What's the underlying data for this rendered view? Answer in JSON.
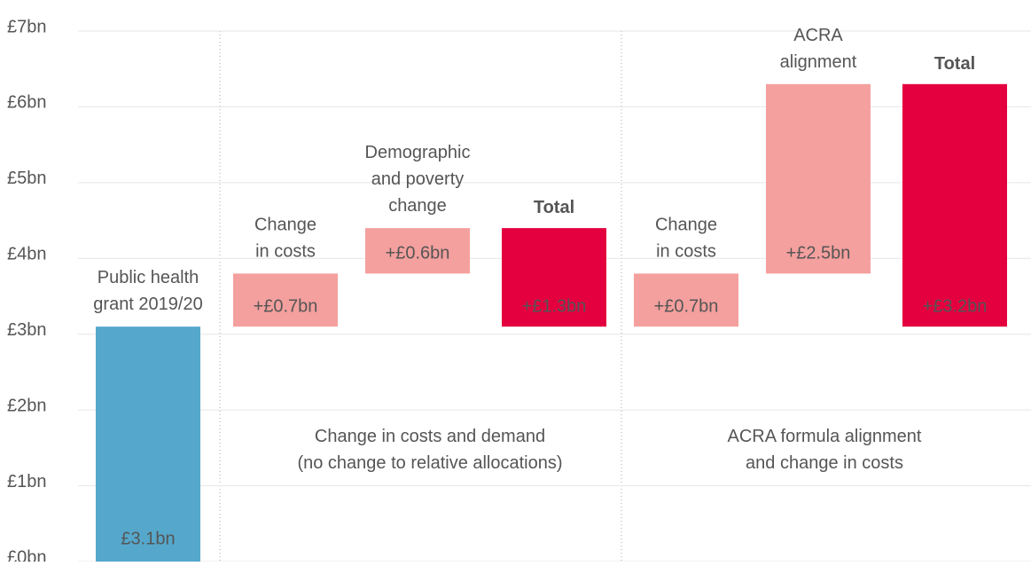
{
  "chart_data": {
    "type": "waterfall",
    "ylim": [
      0,
      7
    ],
    "yticks": [
      {
        "value": 0,
        "label": "£0bn"
      },
      {
        "value": 1,
        "label": "£1bn"
      },
      {
        "value": 2,
        "label": "£2bn"
      },
      {
        "value": 3,
        "label": "£3bn"
      },
      {
        "value": 4,
        "label": "£4bn"
      },
      {
        "value": 5,
        "label": "£5bn"
      },
      {
        "value": 6,
        "label": "£6bn"
      },
      {
        "value": 7,
        "label": "£7bn"
      }
    ],
    "grid": true,
    "start": {
      "label": "Public health\ngrant 2019/20",
      "value": 3.1,
      "value_label": "£3.1bn",
      "color": "#55a8cc"
    },
    "step_color": "#f4a09e",
    "total_color": "#e4003f",
    "groups": [
      {
        "caption": "Change in costs and demand\n(no change to relative allocations)",
        "steps": [
          {
            "label": "Change\nin costs",
            "value": 0.7,
            "value_label": "+£0.7bn"
          },
          {
            "label": "Demographic\nand poverty\nchange",
            "value": 0.6,
            "value_label": "+£0.6bn"
          }
        ],
        "total": {
          "label": "Total",
          "value": 1.3,
          "value_label": "+£1.3bn"
        }
      },
      {
        "caption": "ACRA formula alignment\nand change in costs",
        "steps": [
          {
            "label": "Change\nin costs",
            "value": 0.7,
            "value_label": "+£0.7bn"
          },
          {
            "label": "ACRA\nalignment",
            "value": 2.5,
            "value_label": "+£2.5bn"
          }
        ],
        "total": {
          "label": "Total",
          "value": 3.2,
          "value_label": "+£3.2bn"
        }
      }
    ]
  }
}
